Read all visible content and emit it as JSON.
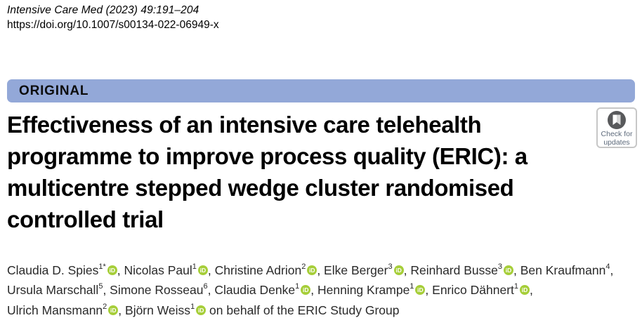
{
  "meta": {
    "journal_ref": "Intensive Care Med (2023) 49:191–204",
    "doi": "https://doi.org/10.1007/s00134-022-06949-x"
  },
  "banner": {
    "label": "ORIGINAL",
    "bg_color": "#93a8d8"
  },
  "title": {
    "lines": [
      "Effectiveness of an intensive care telehealth",
      "programme to improve process quality (ERIC): a",
      "multicentre stepped wedge cluster randomised",
      "controlled trial"
    ]
  },
  "check_badge": {
    "line1": "Check for",
    "line2": "updates",
    "icon_color": "#58595b"
  },
  "authors": {
    "orcid_label": "iD",
    "orcid_color": "#a6ce39",
    "lines": [
      [
        {
          "name": "Claudia D. Spies",
          "sup": "1*",
          "orcid": true
        },
        {
          "name": "Nicolas Paul",
          "sup": "1",
          "orcid": true
        },
        {
          "name": "Christine Adrion",
          "sup": "2",
          "orcid": true
        },
        {
          "name": "Elke Berger",
          "sup": "3",
          "orcid": true
        },
        {
          "name": "Reinhard Busse",
          "sup": "3",
          "orcid": true
        },
        {
          "name": "Ben Kraufmann",
          "sup": "4",
          "orcid": false
        }
      ],
      [
        {
          "name": "Ursula Marschall",
          "sup": "5",
          "orcid": false
        },
        {
          "name": "Simone Rosseau",
          "sup": "6",
          "orcid": false
        },
        {
          "name": "Claudia Denke",
          "sup": "1",
          "orcid": true
        },
        {
          "name": "Henning Krampe",
          "sup": "1",
          "orcid": true
        },
        {
          "name": "Enrico Dähnert",
          "sup": "1",
          "orcid": true
        }
      ],
      [
        {
          "name": "Ulrich Mansmann",
          "sup": "2",
          "orcid": true
        },
        {
          "name": "Björn Weiss",
          "sup": "1",
          "orcid": true
        }
      ]
    ],
    "suffix": "on behalf of the ERIC Study Group"
  }
}
